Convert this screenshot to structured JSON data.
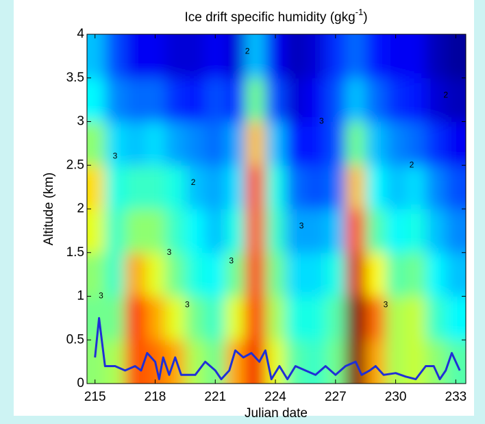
{
  "chart_data": {
    "type": "heatmap",
    "title": {
      "text": "Ice drift specific humidity (gkg",
      "sup": "-1",
      "close": ")"
    },
    "x_label": "Julian date",
    "y_label": "Altitude (km)",
    "xlim": [
      214.6,
      233.5
    ],
    "ylim": [
      0,
      4
    ],
    "xticks": [
      215,
      218,
      221,
      224,
      227,
      230,
      233
    ],
    "yticks": [
      0,
      0.5,
      1,
      1.5,
      2,
      2.5,
      3,
      3.5,
      4
    ],
    "colormap": "jet",
    "clim": [
      1.5,
      5
    ],
    "grid_x": [
      215,
      216,
      217,
      218,
      219,
      220,
      221,
      222,
      223,
      224,
      225,
      226,
      227,
      228,
      229,
      230,
      231,
      232,
      233
    ],
    "grid_y": [
      0.25,
      0.75,
      1.25,
      1.75,
      2.25,
      2.75,
      3.25,
      3.75
    ],
    "z": [
      [
        3.3,
        3.2,
        3.3,
        3.6,
        3.8,
        3.3,
        2.8,
        2.6
      ],
      [
        3.4,
        3.2,
        3.0,
        3.0,
        2.9,
        2.7,
        2.4,
        2.2
      ],
      [
        4.3,
        4.4,
        4.0,
        3.3,
        3.0,
        2.6,
        2.3,
        1.9
      ],
      [
        4.2,
        4.0,
        3.6,
        3.3,
        3.0,
        2.7,
        2.3,
        1.9
      ],
      [
        4.0,
        3.6,
        3.2,
        3.0,
        2.9,
        2.5,
        2.1,
        1.8
      ],
      [
        3.4,
        3.2,
        2.9,
        2.8,
        2.6,
        2.4,
        2.0,
        1.8
      ],
      [
        3.2,
        3.0,
        2.8,
        2.6,
        2.5,
        2.3,
        2.2,
        1.9
      ],
      [
        4.0,
        3.6,
        3.2,
        2.9,
        2.7,
        2.5,
        2.1,
        1.8
      ],
      [
        4.6,
        4.5,
        4.4,
        4.3,
        4.3,
        3.9,
        3.2,
        2.6
      ],
      [
        3.6,
        3.4,
        3.2,
        3.0,
        2.9,
        2.6,
        2.2,
        1.9
      ],
      [
        3.1,
        2.9,
        2.7,
        2.5,
        2.3,
        2.0,
        1.8,
        1.7
      ],
      [
        3.0,
        2.9,
        2.7,
        2.5,
        2.2,
        2.0,
        1.9,
        1.8
      ],
      [
        3.2,
        3.1,
        2.9,
        2.6,
        2.3,
        2.2,
        2.2,
        2.1
      ],
      [
        5.0,
        5.0,
        4.7,
        4.3,
        3.9,
        3.2,
        2.6,
        2.3
      ],
      [
        4.0,
        4.2,
        3.7,
        3.1,
        2.8,
        2.6,
        2.3,
        2.0
      ],
      [
        3.4,
        3.4,
        3.1,
        2.8,
        2.6,
        2.4,
        2.1,
        1.9
      ],
      [
        3.5,
        3.5,
        3.2,
        2.9,
        2.7,
        2.3,
        2.0,
        1.9
      ],
      [
        3.3,
        3.0,
        2.8,
        2.6,
        2.4,
        2.1,
        1.8,
        1.7
      ],
      [
        3.1,
        2.8,
        2.6,
        2.4,
        2.2,
        1.9,
        1.7,
        1.6
      ]
    ],
    "contour_labels": [
      {
        "text": "3",
        "x": 215.3,
        "y": 1.0
      },
      {
        "text": "3",
        "x": 216.0,
        "y": 2.6
      },
      {
        "text": "3",
        "x": 218.7,
        "y": 1.5
      },
      {
        "text": "3",
        "x": 219.6,
        "y": 0.9
      },
      {
        "text": "3",
        "x": 221.8,
        "y": 1.4
      },
      {
        "text": "2",
        "x": 219.9,
        "y": 2.3
      },
      {
        "text": "2",
        "x": 222.6,
        "y": 3.8
      },
      {
        "text": "3",
        "x": 225.3,
        "y": 1.8
      },
      {
        "text": "3",
        "x": 229.5,
        "y": 0.9
      },
      {
        "text": "2",
        "x": 230.8,
        "y": 2.5
      },
      {
        "text": "2",
        "x": 232.5,
        "y": 3.3
      },
      {
        "text": "3",
        "x": 226.3,
        "y": 3.0
      }
    ],
    "line": {
      "color": "#1f2fd6",
      "x": [
        215,
        215.2,
        215.5,
        216,
        216.5,
        217,
        217.3,
        217.6,
        218,
        218.2,
        218.4,
        218.7,
        219,
        219.3,
        220,
        220.5,
        221,
        221.3,
        221.7,
        222,
        222.4,
        222.8,
        223.2,
        223.5,
        223.8,
        224.2,
        224.6,
        225,
        225.5,
        226,
        226.5,
        227,
        227.5,
        228,
        228.3,
        228.7,
        229,
        229.4,
        230,
        230.5,
        231,
        231.5,
        231.9,
        232.2,
        232.5,
        232.8,
        233.2
      ],
      "values": [
        0.3,
        0.75,
        0.2,
        0.2,
        0.15,
        0.2,
        0.15,
        0.35,
        0.25,
        0.05,
        0.3,
        0.1,
        0.3,
        0.1,
        0.1,
        0.25,
        0.15,
        0.05,
        0.15,
        0.38,
        0.3,
        0.35,
        0.25,
        0.38,
        0.05,
        0.2,
        0.05,
        0.2,
        0.15,
        0.1,
        0.2,
        0.1,
        0.2,
        0.25,
        0.1,
        0.15,
        0.2,
        0.1,
        0.12,
        0.08,
        0.05,
        0.2,
        0.2,
        0.05,
        0.15,
        0.35,
        0.15
      ]
    }
  }
}
